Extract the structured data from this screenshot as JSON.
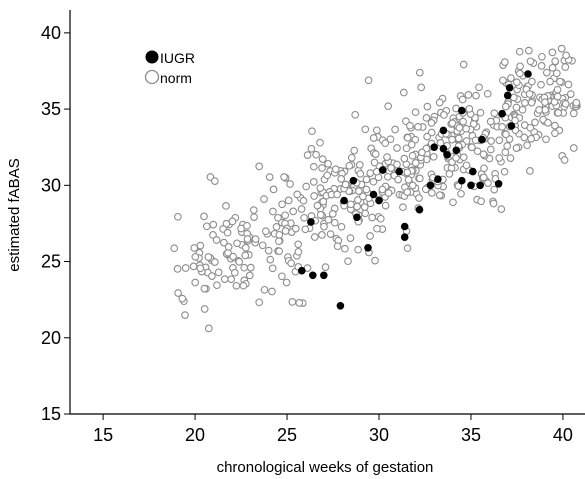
{
  "chart_data": {
    "type": "scatter",
    "xlabel": "chronological weeks of gestation",
    "ylabel": "estimated fABAS",
    "xlim": [
      13.2,
      41.2
    ],
    "ylim": [
      15,
      41.5
    ],
    "xticks": [
      15,
      20,
      25,
      30,
      35,
      40
    ],
    "yticks": [
      15,
      20,
      25,
      30,
      35,
      40
    ],
    "grid": false,
    "legend_position": "top-left",
    "series": [
      {
        "name": "IUGR",
        "marker": "filled-circle",
        "color": "#000000",
        "points": [
          [
            25.8,
            24.4
          ],
          [
            26.4,
            24.1
          ],
          [
            27.0,
            24.1
          ],
          [
            27.9,
            22.1
          ],
          [
            26.3,
            27.6
          ],
          [
            28.1,
            29.0
          ],
          [
            28.6,
            30.3
          ],
          [
            28.8,
            27.9
          ],
          [
            29.4,
            25.9
          ],
          [
            29.7,
            29.4
          ],
          [
            30.0,
            29.0
          ],
          [
            30.2,
            31.0
          ],
          [
            31.1,
            30.9
          ],
          [
            31.4,
            27.3
          ],
          [
            31.4,
            26.6
          ],
          [
            32.2,
            28.4
          ],
          [
            32.8,
            30.0
          ],
          [
            33.0,
            32.5
          ],
          [
            33.2,
            30.4
          ],
          [
            33.5,
            33.6
          ],
          [
            33.5,
            32.4
          ],
          [
            33.7,
            32.0
          ],
          [
            34.2,
            32.3
          ],
          [
            34.5,
            34.9
          ],
          [
            34.5,
            30.3
          ],
          [
            35.0,
            30.0
          ],
          [
            35.1,
            30.9
          ],
          [
            35.5,
            30.0
          ],
          [
            35.6,
            33.0
          ],
          [
            36.5,
            30.1
          ],
          [
            36.7,
            34.7
          ],
          [
            37.0,
            35.9
          ],
          [
            37.1,
            36.4
          ],
          [
            37.2,
            33.9
          ],
          [
            38.1,
            37.3
          ]
        ]
      },
      {
        "name": "norm",
        "marker": "open-circle",
        "color": "#8c8c8c",
        "generated": true,
        "count": 620,
        "x_range": [
          18.8,
          40.8
        ],
        "trend": {
          "slope": 0.58,
          "intercept": 12.8
        },
        "spread_sd": 2.1
      }
    ]
  }
}
